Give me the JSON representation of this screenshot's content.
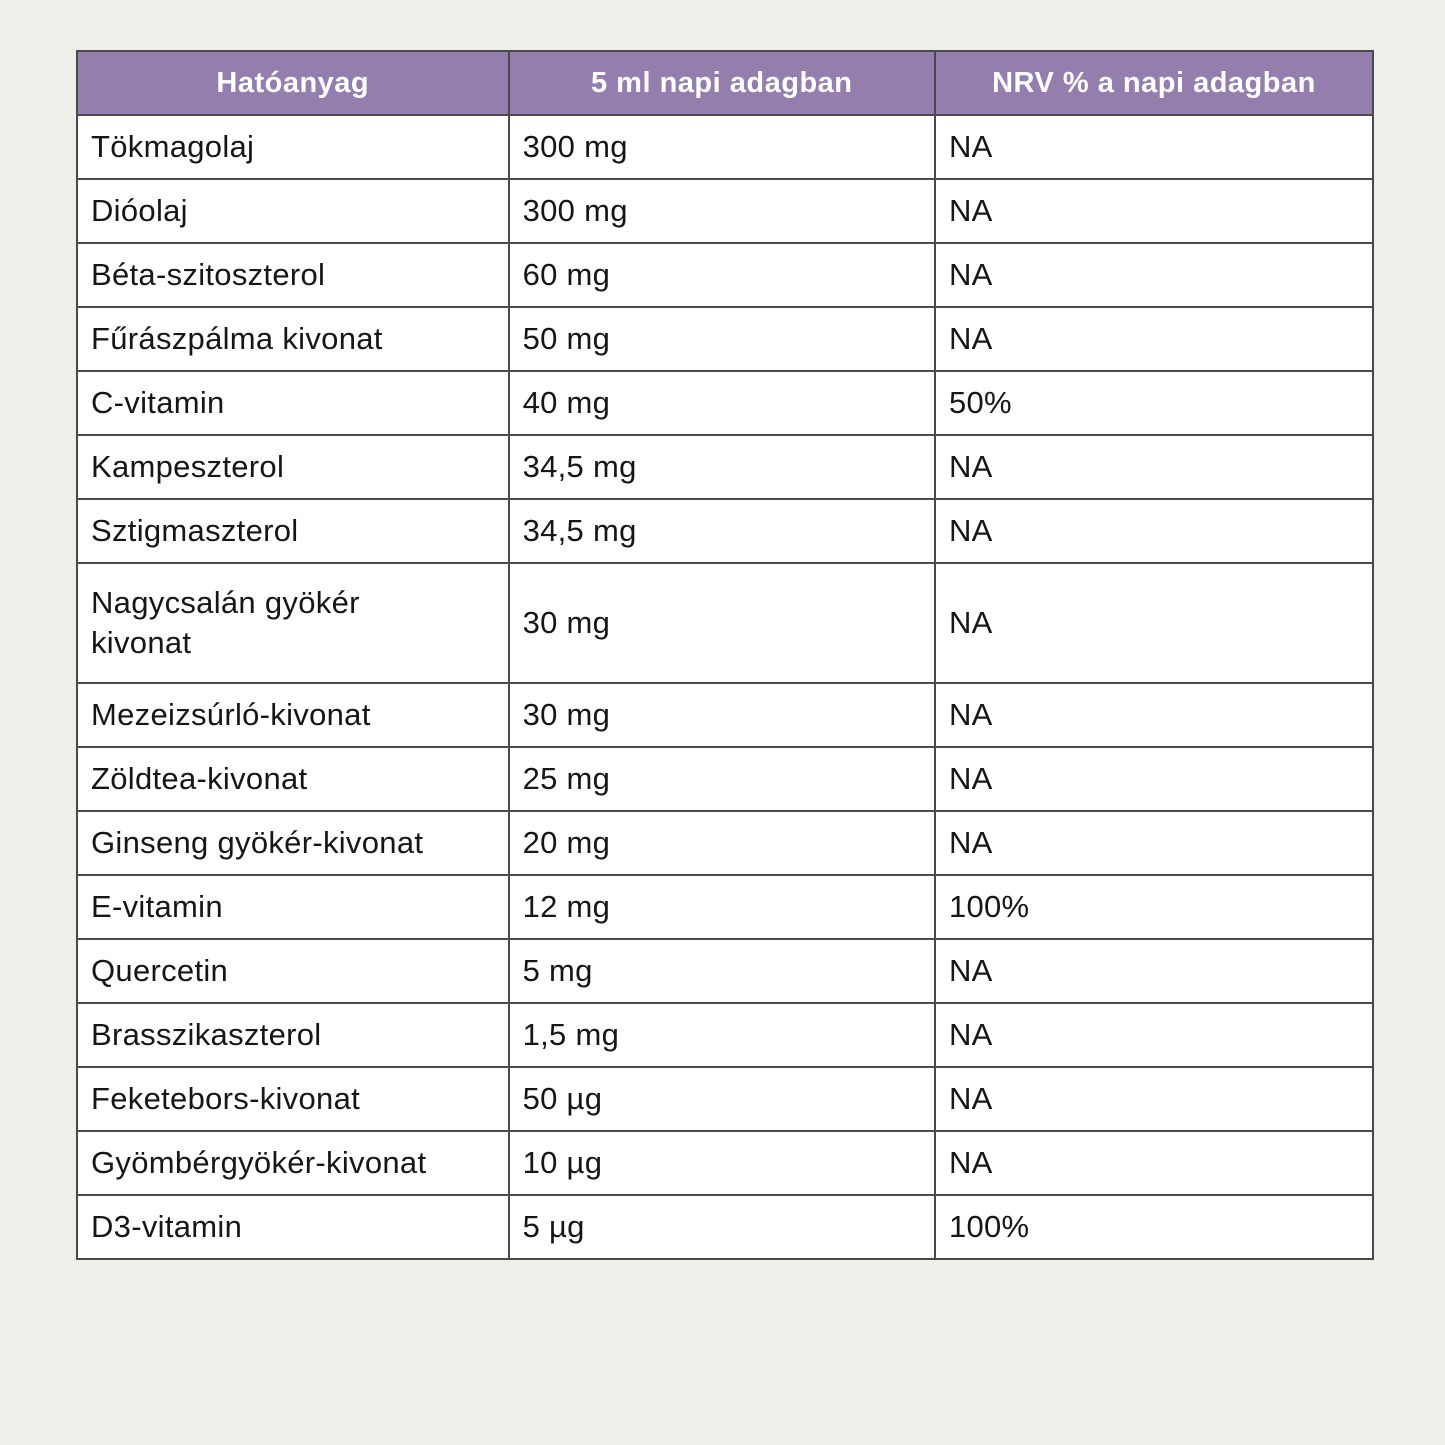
{
  "page": {
    "background_color": "#edefe8"
  },
  "table": {
    "border_color": "#4a4a4a",
    "header": {
      "bg": "#947ead",
      "text_color": "#ffffff",
      "columns": [
        "Hatóanyag",
        "5 ml napi adagban",
        "NRV % a napi adagban"
      ]
    },
    "rows": [
      {
        "ingredient": "Tökmagolaj",
        "amount": "300 mg",
        "nrv": "NA"
      },
      {
        "ingredient": "Dióolaj",
        "amount": "300 mg",
        "nrv": "NA"
      },
      {
        "ingredient": "Béta-szitoszterol",
        "amount": "60 mg",
        "nrv": "NA"
      },
      {
        "ingredient": "Fűrászpálma kivonat",
        "amount": "50 mg",
        "nrv": "NA"
      },
      {
        "ingredient": "C-vitamin",
        "amount": "40 mg",
        "nrv": "50%"
      },
      {
        "ingredient": "Kampeszterol",
        "amount": "34,5 mg",
        "nrv": "NA"
      },
      {
        "ingredient": "Sztigmaszterol",
        "amount": "34,5 mg",
        "nrv": "NA"
      },
      {
        "ingredient": "Nagycsalán gyökér\nkivonat",
        "amount": "30 mg",
        "nrv": "NA"
      },
      {
        "ingredient": "Mezeizsúrló-kivonat",
        "amount": "30 mg",
        "nrv": "NA"
      },
      {
        "ingredient": "Zöldtea-kivonat",
        "amount": "25 mg",
        "nrv": "NA"
      },
      {
        "ingredient": "Ginseng gyökér-kivonat",
        "amount": "20 mg",
        "nrv": "NA"
      },
      {
        "ingredient": "E-vitamin",
        "amount": "12 mg",
        "nrv": "100%"
      },
      {
        "ingredient": "Quercetin",
        "amount": "5 mg",
        "nrv": "NA"
      },
      {
        "ingredient": "Brasszikaszterol",
        "amount": "1,5 mg",
        "nrv": "NA"
      },
      {
        "ingredient": "Feketebors-kivonat",
        "amount": "50 µg",
        "nrv": "NA"
      },
      {
        "ingredient": "Gyömbérgyökér-kivonat",
        "amount": "10 µg",
        "nrv": "NA"
      },
      {
        "ingredient": "D3-vitamin",
        "amount": "5 µg",
        "nrv": "100%"
      }
    ]
  }
}
